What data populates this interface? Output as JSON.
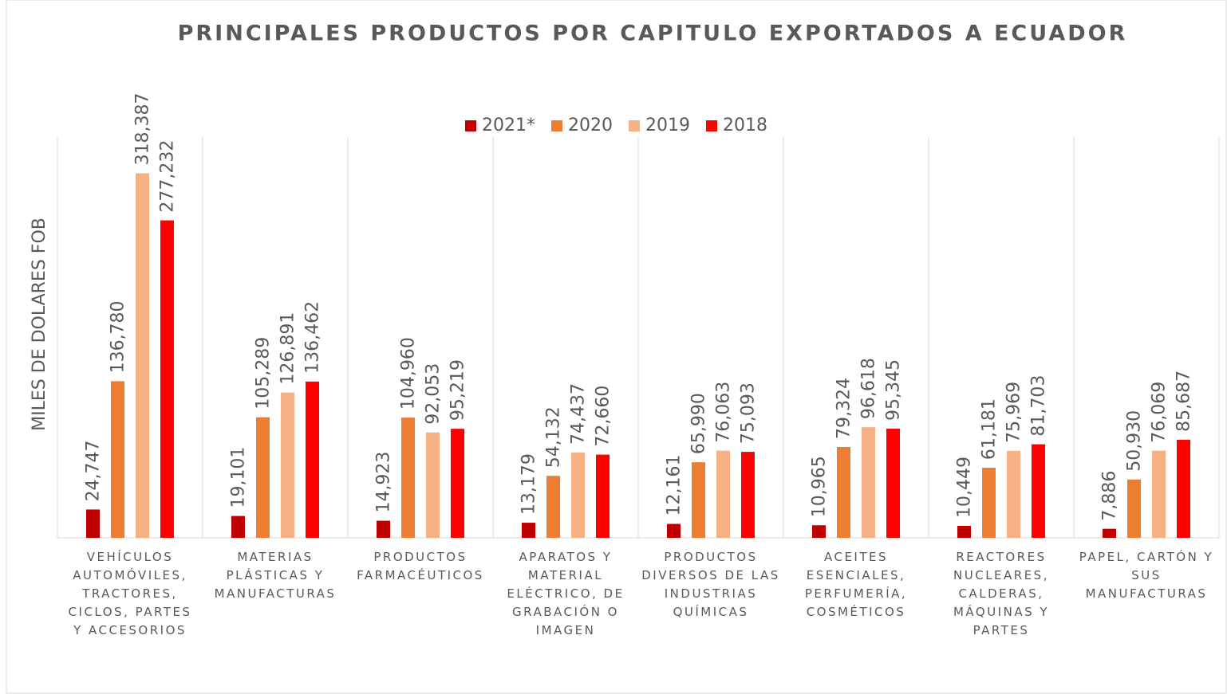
{
  "chart_data": {
    "type": "bar",
    "title": "PRINCIPALES PRODUCTOS POR CAPITULO  EXPORTADOS  A ECUADOR",
    "y_label": "MILES DE DOLARES FOB",
    "categories": [
      "VEHÍCULOS AUTOMÓVILES, TRACTORES, CICLOS, PARTES Y ACCESORIOS",
      "MATERIAS PLÁSTICAS Y MANUFACTURAS",
      "PRODUCTOS FARMACÉUTICOS",
      "APARATOS Y MATERIAL ELÉCTRICO, DE GRABACIÓN O IMAGEN",
      "PRODUCTOS DIVERSOS DE LAS INDUSTRIAS QUÍMICAS",
      "ACEITES ESENCIALES, PERFUMERÍA, COSMÉTICOS",
      "REACTORES NUCLEARES, CALDERAS, MÁQUINAS Y PARTES",
      "PAPEL, CARTÓN Y SUS MANUFACTURAS"
    ],
    "series": [
      {
        "name": "2021*",
        "color": "#c00000",
        "values": [
          24747,
          19101,
          14923,
          13179,
          12161,
          10965,
          10449,
          7886
        ],
        "value_labels": [
          "24,747",
          "19,101",
          "14,923",
          "13,179",
          "12,161",
          "10,965",
          "10,449",
          "7,886"
        ]
      },
      {
        "name": "2020",
        "color": "#ed7d31",
        "values": [
          136780,
          105289,
          104960,
          54132,
          65990,
          79324,
          61181,
          50930
        ],
        "value_labels": [
          "136,780",
          "105,289",
          "104,960",
          "54,132",
          "65,990",
          "79,324",
          "61,181",
          "50,930"
        ]
      },
      {
        "name": "2019",
        "color": "#f4b183",
        "values": [
          318387,
          126891,
          92053,
          74437,
          76063,
          96618,
          75969,
          76069
        ],
        "value_labels": [
          "318,387",
          "126,891",
          "92,053",
          "74,437",
          "76,063",
          "96,618",
          "75,969",
          "76,069"
        ]
      },
      {
        "name": "2018",
        "color": "#ff0000",
        "values": [
          277232,
          136462,
          95219,
          72660,
          75093,
          95345,
          81703,
          85687
        ],
        "value_labels": [
          "277,232",
          "136,462",
          "95,219",
          "72,660",
          "75,093",
          "95,345",
          "81,703",
          "85,687"
        ]
      }
    ],
    "ylim": [
      0,
      350000
    ],
    "legend": "top"
  }
}
